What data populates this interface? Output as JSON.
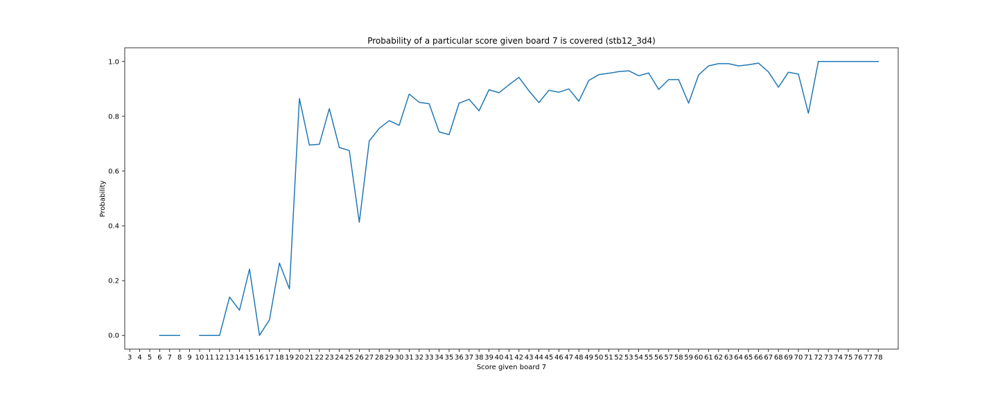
{
  "chart_data": {
    "type": "line",
    "title": "Probability of a particular score given board 7 is covered (stb12_3d4)",
    "xlabel": "Score given board 7",
    "ylabel": "Probability",
    "xlim": [
      2.5,
      80.0
    ],
    "ylim": [
      -0.05,
      1.05
    ],
    "grid": false,
    "x_ticks": [
      3,
      4,
      5,
      6,
      7,
      8,
      9,
      10,
      11,
      12,
      13,
      14,
      15,
      16,
      17,
      18,
      19,
      20,
      21,
      22,
      23,
      24,
      25,
      26,
      27,
      28,
      29,
      30,
      31,
      32,
      33,
      34,
      35,
      36,
      37,
      38,
      39,
      40,
      41,
      42,
      43,
      44,
      45,
      46,
      47,
      48,
      49,
      50,
      51,
      52,
      53,
      54,
      55,
      56,
      57,
      58,
      59,
      60,
      61,
      62,
      63,
      64,
      65,
      66,
      67,
      68,
      69,
      70,
      71,
      72,
      73,
      74,
      75,
      76,
      77,
      78
    ],
    "y_ticks": [
      "0.0",
      "0.2",
      "0.4",
      "0.6",
      "0.8",
      "1.0"
    ],
    "y_tick_values": [
      0.0,
      0.2,
      0.4,
      0.6,
      0.8,
      1.0
    ],
    "line_color": "#1f77b4",
    "series": [
      {
        "x": [
          3,
          4,
          5,
          6,
          7,
          8,
          9,
          10,
          11,
          12,
          13,
          14,
          15,
          16,
          17,
          18,
          19,
          20,
          21,
          22,
          23,
          24,
          25,
          26,
          27,
          28,
          29,
          30,
          31,
          32,
          33,
          34,
          35,
          36,
          37,
          38,
          39,
          40,
          41,
          42,
          43,
          44,
          45,
          46,
          47,
          48,
          49,
          50,
          51,
          52,
          53,
          54,
          55,
          56,
          57,
          58,
          59,
          60,
          61,
          62,
          63,
          64,
          65,
          66,
          67,
          68,
          69,
          70,
          71,
          72,
          73,
          74,
          75,
          76,
          77,
          78
        ],
        "values": [
          null,
          null,
          null,
          0.0,
          0.0,
          0.0,
          null,
          0.0,
          0.0,
          0.0,
          0.14,
          0.092,
          0.242,
          0.0,
          0.057,
          0.264,
          0.17,
          0.865,
          0.695,
          0.698,
          0.828,
          0.686,
          0.675,
          0.413,
          0.71,
          0.756,
          0.784,
          0.767,
          0.881,
          0.851,
          0.846,
          0.743,
          0.733,
          0.848,
          0.862,
          0.82,
          0.897,
          0.886,
          0.915,
          0.942,
          0.893,
          0.85,
          0.895,
          0.888,
          0.9,
          0.855,
          0.931,
          0.952,
          0.957,
          0.963,
          0.966,
          0.948,
          0.958,
          0.898,
          0.934,
          0.934,
          0.848,
          0.951,
          0.984,
          0.992,
          0.992,
          0.984,
          0.988,
          0.994,
          0.962,
          0.906,
          0.961,
          0.954,
          0.811,
          1.0,
          1.0,
          1.0,
          1.0,
          1.0,
          1.0,
          1.0
        ]
      }
    ]
  }
}
